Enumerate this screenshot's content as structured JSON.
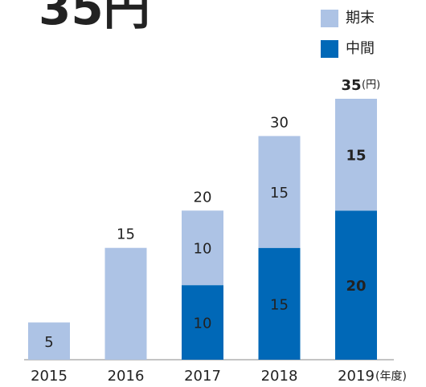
{
  "chart_data": {
    "type": "stacked_bar",
    "title": "35円",
    "categories": [
      "2015",
      "2016",
      "2017",
      "2018",
      "2019"
    ],
    "x_unit": "(年度)",
    "series": [
      {
        "name": "中間",
        "color": "#0068b7",
        "values": [
          null,
          null,
          10,
          15,
          20
        ]
      },
      {
        "name": "期末",
        "color": "#adc3e5",
        "values": [
          5,
          15,
          10,
          15,
          15
        ]
      }
    ],
    "totals": [
      null,
      15,
      20,
      30,
      35
    ],
    "total_unit": "(円)",
    "highlight_last": true,
    "ylim": [
      0,
      35
    ]
  }
}
